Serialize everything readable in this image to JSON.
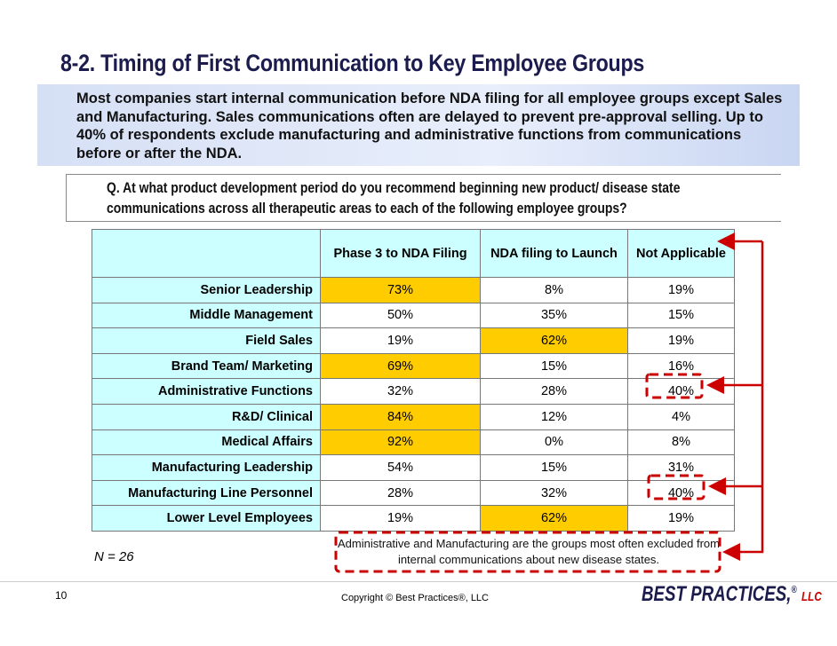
{
  "title": "8-2. Timing of First Communication to Key Employee Groups",
  "summary": "Most companies start internal communication before NDA filing for all employee groups except Sales and Manufacturing. Sales communications often are delayed to prevent pre-approval selling. Up to 40% of respondents exclude manufacturing and administrative functions from communications before or after the NDA.",
  "question": "Q. At what product development period do you recommend beginning new product/ disease state communications across all therapeutic areas to each of the following employee groups?",
  "table": {
    "header": [
      "Phase 3 to NDA Filing",
      "NDA filing to Launch",
      "Not Applicable"
    ],
    "rows": [
      [
        "Senior Leadership",
        "73%",
        "8%",
        "19%"
      ],
      [
        "Middle Management",
        "50%",
        "35%",
        "15%"
      ],
      [
        "Field Sales",
        "19%",
        "62%",
        "19%"
      ],
      [
        "Brand Team/ Marketing",
        "69%",
        "15%",
        "16%"
      ],
      [
        "Administrative Functions",
        "32%",
        "28%",
        "40%"
      ],
      [
        "R&D/ Clinical",
        "84%",
        "12%",
        "4%"
      ],
      [
        "Medical Affairs",
        "92%",
        "0%",
        "8%"
      ],
      [
        "Manufacturing Leadership",
        "54%",
        "15%",
        "31%"
      ],
      [
        "Manufacturing Line Personnel",
        "28%",
        "32%",
        "40%"
      ],
      [
        "Lower Level Employees",
        "19%",
        "62%",
        "19%"
      ]
    ]
  },
  "sample_size": "N = 26",
  "callout": "Administrative and Manufacturing are the groups most often excluded from internal communications about new disease states.",
  "page_number": "10",
  "copyright": "Copyright ©  Best Practices®, LLC",
  "logo": {
    "name": "BEST PRACTICES,",
    "registered": "®",
    "suffix": "LLC"
  }
}
